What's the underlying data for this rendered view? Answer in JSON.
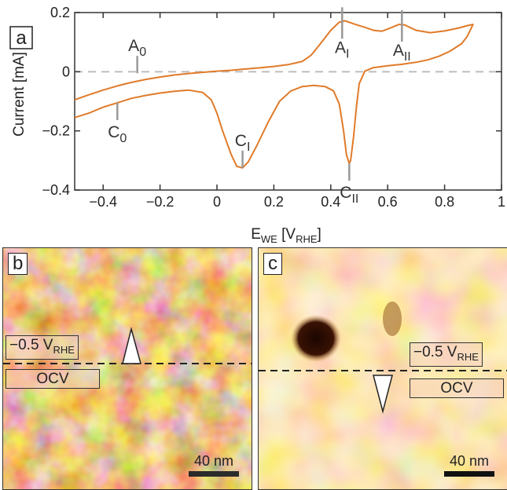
{
  "chart_data": {
    "type": "line",
    "panel_label": "a",
    "xlabel": {
      "main": "E",
      "sub1": "WE",
      "bracket_open": " [V",
      "sub2": "RHE",
      "bracket_close": "]"
    },
    "ylabel": "Current [mA]",
    "xlim": [
      -0.5,
      1.0
    ],
    "ylim": [
      -0.4,
      0.2
    ],
    "xticks": [
      -0.4,
      -0.2,
      0,
      0.2,
      0.4,
      0.6,
      0.8,
      1
    ],
    "xtick_labels": [
      "−0.4",
      "−0.2",
      "0",
      "0.2",
      "0.4",
      "0.6",
      "0.8",
      "1"
    ],
    "yticks": [
      -0.4,
      -0.2,
      0,
      0.2
    ],
    "ytick_labels": [
      "−0.4",
      "−0.2",
      "0",
      "0.2"
    ],
    "zero_line": true,
    "line_color": "#e07b2a",
    "series": [
      {
        "values_anodic": [
          [
            -0.5,
            -0.095
          ],
          [
            -0.45,
            -0.078
          ],
          [
            -0.4,
            -0.062
          ],
          [
            -0.35,
            -0.048
          ],
          [
            -0.3,
            -0.036
          ],
          [
            -0.25,
            -0.026
          ],
          [
            -0.2,
            -0.018
          ],
          [
            -0.15,
            -0.011
          ],
          [
            -0.1,
            -0.006
          ],
          [
            -0.05,
            -0.002
          ],
          [
            0,
            0.002
          ],
          [
            0.05,
            0.005
          ],
          [
            0.1,
            0.009
          ],
          [
            0.15,
            0.013
          ],
          [
            0.2,
            0.018
          ],
          [
            0.25,
            0.024
          ],
          [
            0.3,
            0.035
          ],
          [
            0.33,
            0.055
          ],
          [
            0.36,
            0.09
          ],
          [
            0.4,
            0.14
          ],
          [
            0.43,
            0.168
          ],
          [
            0.45,
            0.172
          ],
          [
            0.48,
            0.162
          ],
          [
            0.52,
            0.15
          ],
          [
            0.55,
            0.14
          ],
          [
            0.58,
            0.137
          ],
          [
            0.61,
            0.148
          ],
          [
            0.64,
            0.16
          ],
          [
            0.66,
            0.158
          ],
          [
            0.7,
            0.14
          ],
          [
            0.75,
            0.132
          ],
          [
            0.8,
            0.138
          ],
          [
            0.85,
            0.148
          ],
          [
            0.88,
            0.156
          ],
          [
            0.9,
            0.16
          ]
        ],
        "values_cathodic": [
          [
            0.9,
            0.16
          ],
          [
            0.88,
            0.12
          ],
          [
            0.86,
            0.095
          ],
          [
            0.82,
            0.07
          ],
          [
            0.78,
            0.052
          ],
          [
            0.74,
            0.04
          ],
          [
            0.7,
            0.032
          ],
          [
            0.65,
            0.025
          ],
          [
            0.6,
            0.02
          ],
          [
            0.55,
            0.014
          ],
          [
            0.52,
            0.002
          ],
          [
            0.5,
            -0.04
          ],
          [
            0.49,
            -0.12
          ],
          [
            0.48,
            -0.22
          ],
          [
            0.47,
            -0.3
          ],
          [
            0.465,
            -0.31
          ],
          [
            0.455,
            -0.28
          ],
          [
            0.445,
            -0.2
          ],
          [
            0.43,
            -0.11
          ],
          [
            0.41,
            -0.065
          ],
          [
            0.38,
            -0.05
          ],
          [
            0.34,
            -0.046
          ],
          [
            0.3,
            -0.05
          ],
          [
            0.26,
            -0.065
          ],
          [
            0.22,
            -0.1
          ],
          [
            0.18,
            -0.17
          ],
          [
            0.14,
            -0.25
          ],
          [
            0.11,
            -0.305
          ],
          [
            0.09,
            -0.325
          ],
          [
            0.07,
            -0.32
          ],
          [
            0.05,
            -0.28
          ],
          [
            0.02,
            -0.2
          ],
          [
            0,
            -0.14
          ],
          [
            -0.02,
            -0.095
          ],
          [
            -0.05,
            -0.07
          ],
          [
            -0.1,
            -0.062
          ],
          [
            -0.15,
            -0.066
          ],
          [
            -0.2,
            -0.072
          ],
          [
            -0.25,
            -0.08
          ],
          [
            -0.3,
            -0.09
          ],
          [
            -0.35,
            -0.105
          ],
          [
            -0.4,
            -0.12
          ],
          [
            -0.45,
            -0.14
          ],
          [
            -0.5,
            -0.155
          ]
        ]
      }
    ],
    "annotations": [
      {
        "base": "A",
        "sub": "0",
        "x": -0.28,
        "y": -0.005,
        "mark_dir": "up"
      },
      {
        "base": "A",
        "sub": "I",
        "x": 0.44,
        "y": 0.17,
        "mark_dir": "down"
      },
      {
        "base": "A",
        "sub": "II",
        "x": 0.65,
        "y": 0.16,
        "mark_dir": "down"
      },
      {
        "base": "C",
        "sub": "0",
        "x": -0.35,
        "y": -0.105,
        "mark_dir": "down"
      },
      {
        "base": "C",
        "sub": "I",
        "x": 0.09,
        "y": -0.325,
        "mark_dir": "up"
      },
      {
        "base": "C",
        "sub": "II",
        "x": 0.465,
        "y": -0.31,
        "mark_dir": "down"
      }
    ]
  },
  "afm_b": {
    "label": "b",
    "potential_label": {
      "main": "−0.5 V",
      "sub": "RHE"
    },
    "ocv_label": "OCV",
    "scale_text": "40 nm",
    "marker": "up"
  },
  "afm_c": {
    "label": "c",
    "potential_label": {
      "main": "−0.5 V",
      "sub": "RHE"
    },
    "ocv_label": "OCV",
    "scale_text": "40 nm",
    "marker": "down"
  },
  "colors": {
    "curve": "#e07b2a",
    "afm_dark": "#3a1a05",
    "afm_mid": "#c07a2a",
    "afm_light": "#fbe1b0"
  }
}
